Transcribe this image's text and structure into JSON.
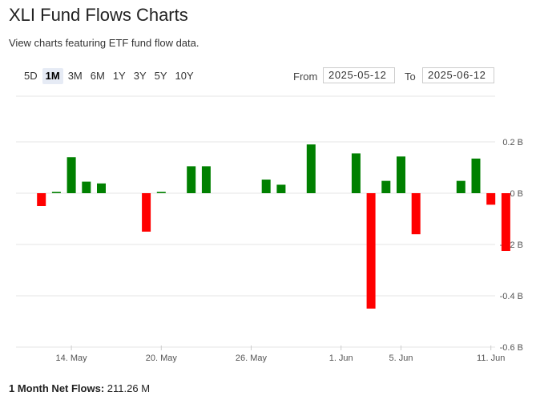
{
  "header": {
    "title": "XLI Fund Flows Charts",
    "subtitle": "View charts featuring ETF fund flow data."
  },
  "ranges": [
    {
      "label": "5D",
      "active": false
    },
    {
      "label": "1M",
      "active": true
    },
    {
      "label": "3M",
      "active": false
    },
    {
      "label": "6M",
      "active": false
    },
    {
      "label": "1Y",
      "active": false
    },
    {
      "label": "3Y",
      "active": false
    },
    {
      "label": "5Y",
      "active": false
    },
    {
      "label": "10Y",
      "active": false
    }
  ],
  "dates": {
    "from_label": "From",
    "from_value": "2025-05-12",
    "to_label": "To",
    "to_value": "2025-06-12"
  },
  "footer": {
    "net_label": "1 Month Net Flows:",
    "net_value": "211.26 M"
  },
  "colors": {
    "positive": "#008000",
    "negative": "#ff0000",
    "grid": "#e6e6e6"
  },
  "chart_data": {
    "type": "bar",
    "ylim": [
      -0.6,
      0.2
    ],
    "yticks": [
      0.2,
      0,
      -0.2,
      -0.4,
      -0.6
    ],
    "ytick_labels": [
      "0.2 B",
      "0 B",
      "-0.2 B",
      "-0.4 B",
      "-0.6 B"
    ],
    "xtick_labels": [
      {
        "label": "14. May",
        "date": "2025-05-14"
      },
      {
        "label": "20. May",
        "date": "2025-05-20"
      },
      {
        "label": "26. May",
        "date": "2025-05-26"
      },
      {
        "label": "1. Jun",
        "date": "2025-06-01"
      },
      {
        "label": "5. Jun",
        "date": "2025-06-05"
      },
      {
        "label": "11. Jun",
        "date": "2025-06-11"
      }
    ],
    "x_range": [
      "2025-05-11",
      "2025-06-12"
    ],
    "bars": [
      {
        "date": "2025-05-12",
        "value": -0.05
      },
      {
        "date": "2025-05-13",
        "value": 0.005
      },
      {
        "date": "2025-05-14",
        "value": 0.14
      },
      {
        "date": "2025-05-15",
        "value": 0.045
      },
      {
        "date": "2025-05-16",
        "value": 0.038
      },
      {
        "date": "2025-05-19",
        "value": -0.15
      },
      {
        "date": "2025-05-20",
        "value": 0.005
      },
      {
        "date": "2025-05-22",
        "value": 0.105
      },
      {
        "date": "2025-05-23",
        "value": 0.105
      },
      {
        "date": "2025-05-27",
        "value": 0.053
      },
      {
        "date": "2025-05-28",
        "value": 0.033
      },
      {
        "date": "2025-05-30",
        "value": 0.19
      },
      {
        "date": "2025-06-02",
        "value": 0.155
      },
      {
        "date": "2025-06-03",
        "value": -0.45
      },
      {
        "date": "2025-06-04",
        "value": 0.048
      },
      {
        "date": "2025-06-05",
        "value": 0.143
      },
      {
        "date": "2025-06-06",
        "value": -0.16
      },
      {
        "date": "2025-06-09",
        "value": 0.048
      },
      {
        "date": "2025-06-10",
        "value": 0.135
      },
      {
        "date": "2025-06-11",
        "value": -0.045
      },
      {
        "date": "2025-06-12",
        "value": -0.225
      }
    ]
  }
}
